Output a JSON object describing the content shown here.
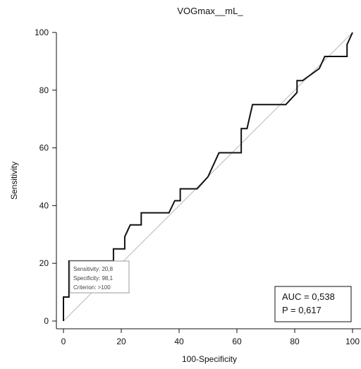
{
  "chart_data": {
    "type": "line",
    "title": "VOGmax__mL_",
    "xlabel": "100-Specificity",
    "ylabel": "Sensitivity",
    "xlim": [
      0,
      100
    ],
    "ylim": [
      0,
      100
    ],
    "xticks": [
      "0",
      "20",
      "40",
      "60",
      "80",
      "100"
    ],
    "yticks": [
      "0",
      "20",
      "40",
      "60",
      "80",
      "100"
    ],
    "grid": false,
    "series": [
      {
        "values": [
          {
            "x": 0,
            "y": 0
          },
          {
            "x": 0,
            "y": 8.3
          },
          {
            "x": 1.9,
            "y": 8.3
          },
          {
            "x": 1.9,
            "y": 20.8
          },
          {
            "x": 17.3,
            "y": 20.8
          },
          {
            "x": 17.3,
            "y": 25
          },
          {
            "x": 21.2,
            "y": 25
          },
          {
            "x": 21.2,
            "y": 29.2
          },
          {
            "x": 23.1,
            "y": 33.3
          },
          {
            "x": 26.9,
            "y": 33.3
          },
          {
            "x": 26.9,
            "y": 37.5
          },
          {
            "x": 36.5,
            "y": 37.5
          },
          {
            "x": 38.5,
            "y": 41.7
          },
          {
            "x": 40.4,
            "y": 41.7
          },
          {
            "x": 40.4,
            "y": 45.8
          },
          {
            "x": 46.2,
            "y": 45.8
          },
          {
            "x": 50,
            "y": 50
          },
          {
            "x": 53.8,
            "y": 58.3
          },
          {
            "x": 61.5,
            "y": 58.3
          },
          {
            "x": 61.5,
            "y": 66.7
          },
          {
            "x": 63.5,
            "y": 66.7
          },
          {
            "x": 65.4,
            "y": 75
          },
          {
            "x": 76.9,
            "y": 75
          },
          {
            "x": 80.8,
            "y": 79.2
          },
          {
            "x": 80.8,
            "y": 83.3
          },
          {
            "x": 82.7,
            "y": 83.3
          },
          {
            "x": 88.5,
            "y": 87.5
          },
          {
            "x": 90.4,
            "y": 91.7
          },
          {
            "x": 98.1,
            "y": 91.7
          },
          {
            "x": 98.1,
            "y": 95.8
          },
          {
            "x": 100,
            "y": 100
          }
        ]
      },
      {
        "values": [
          {
            "x": 0,
            "y": 0
          },
          {
            "x": 100,
            "y": 100
          }
        ]
      }
    ],
    "criterion_annotation": {
      "lines": [
        "Sensitivity: 20,8",
        "Specificity: 98,1",
        "Criterion: >100"
      ]
    },
    "stats_box": {
      "lines": [
        "AUC = 0,538",
        "P = 0,617"
      ]
    }
  }
}
